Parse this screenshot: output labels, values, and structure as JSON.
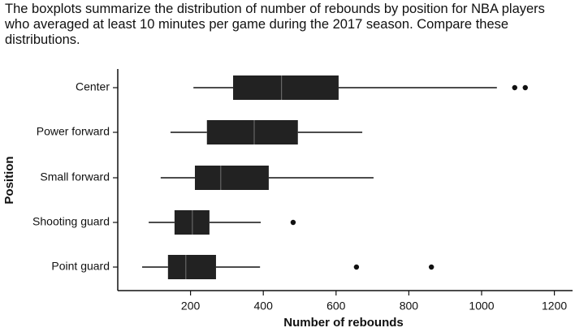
{
  "chart_data": {
    "type": "boxplot",
    "title": "The boxplots summarize the distribution of number of rebounds by position for NBA players who averaged at least 10 minutes per game during the 2017 season. Compare these distributions.",
    "x_label": "Number of rebounds",
    "y_label": "Position",
    "categories": [
      "Center",
      "Power forward",
      "Small forward",
      "Shooting guard",
      "Point guard"
    ],
    "boxes": [
      {
        "min": 208,
        "q1": 317,
        "median": 450,
        "q3": 607,
        "max": 1042,
        "outliers": [
          1091,
          1120
        ]
      },
      {
        "min": 145,
        "q1": 245,
        "median": 375,
        "q3": 495,
        "max": 672,
        "outliers": []
      },
      {
        "min": 118,
        "q1": 212,
        "median": 283,
        "q3": 415,
        "max": 703,
        "outliers": []
      },
      {
        "min": 85,
        "q1": 156,
        "median": 205,
        "q3": 252,
        "max": 393,
        "outliers": [
          482
        ]
      },
      {
        "min": 67,
        "q1": 138,
        "median": 187,
        "q3": 270,
        "max": 391,
        "outliers": [
          656,
          862
        ]
      }
    ],
    "color": "#222222",
    "xlim": [
      0,
      1250
    ],
    "xticks": [
      200,
      400,
      600,
      800,
      1000,
      1200
    ]
  }
}
